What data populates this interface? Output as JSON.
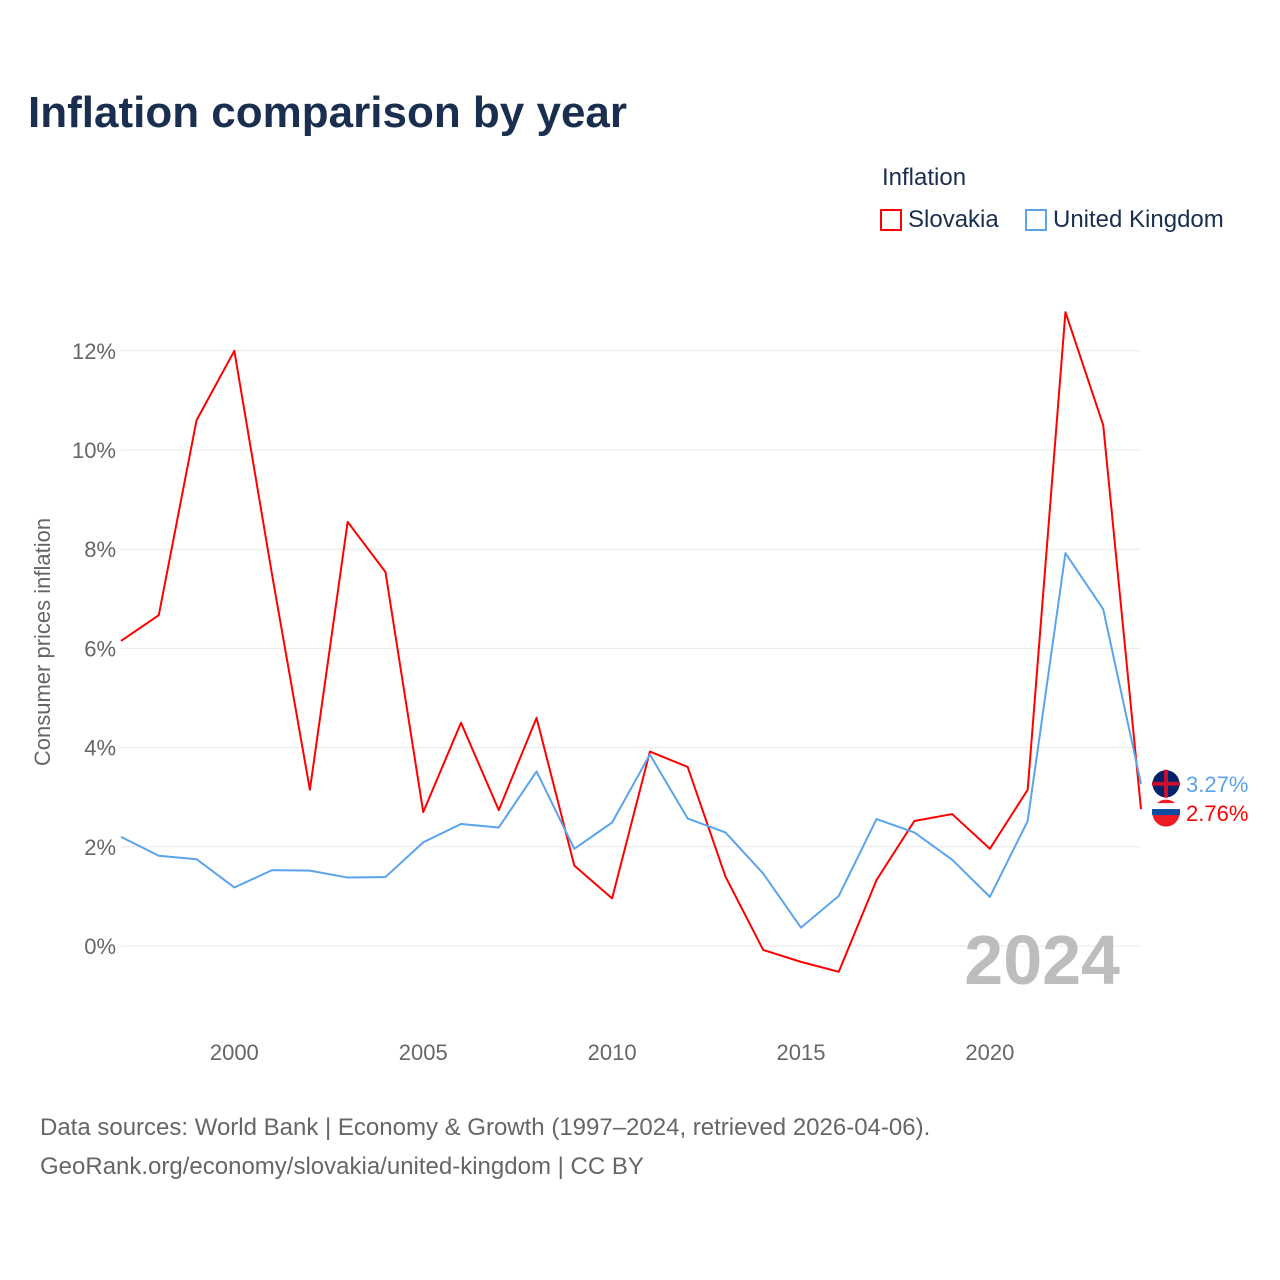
{
  "title": "Inflation comparison by year",
  "legend": {
    "title": "Inflation",
    "items": [
      "Slovakia",
      "United Kingdom"
    ]
  },
  "source": {
    "line1": "Data sources: World Bank | Economy & Growth (1997–2024, retrieved 2026-04-06).",
    "line2": "GeoRank.org/economy/slovakia/united-kingdom | CC BY"
  },
  "chart_data": {
    "type": "line",
    "title": "Inflation comparison by year",
    "ylabel": "Consumer prices inflation",
    "xlabel": "",
    "ylim": [
      -1.3,
      13.5
    ],
    "yticks": [
      0,
      2,
      4,
      6,
      8,
      10,
      12
    ],
    "ytick_labels": [
      "0%",
      "2%",
      "4%",
      "6%",
      "8%",
      "10%",
      "12%"
    ],
    "xticks": [
      2000,
      2005,
      2010,
      2015,
      2020
    ],
    "x": [
      1997,
      1998,
      1999,
      2000,
      2001,
      2002,
      2003,
      2004,
      2005,
      2006,
      2007,
      2008,
      2009,
      2010,
      2011,
      2012,
      2013,
      2014,
      2015,
      2016,
      2017,
      2018,
      2019,
      2020,
      2021,
      2022,
      2023,
      2024
    ],
    "watermark": "2024",
    "series": [
      {
        "name": "Slovakia",
        "color": "#ff0000",
        "end_label": "2.76%",
        "values": [
          6.15,
          6.67,
          10.6,
          12.0,
          7.48,
          3.15,
          8.55,
          7.54,
          2.7,
          4.5,
          2.74,
          4.6,
          1.62,
          0.96,
          3.92,
          3.61,
          1.4,
          -0.08,
          -0.32,
          -0.52,
          1.33,
          2.52,
          2.66,
          1.96,
          3.15,
          12.78,
          10.5,
          2.76
        ]
      },
      {
        "name": "United Kingdom",
        "color": "#5ba4ea",
        "end_label": "3.27%",
        "values": [
          2.2,
          1.82,
          1.75,
          1.18,
          1.53,
          1.52,
          1.38,
          1.39,
          2.09,
          2.46,
          2.39,
          3.52,
          1.96,
          2.49,
          3.86,
          2.57,
          2.29,
          1.46,
          0.37,
          1.01,
          2.56,
          2.29,
          1.74,
          0.99,
          2.52,
          7.92,
          6.79,
          3.27
        ]
      }
    ]
  }
}
